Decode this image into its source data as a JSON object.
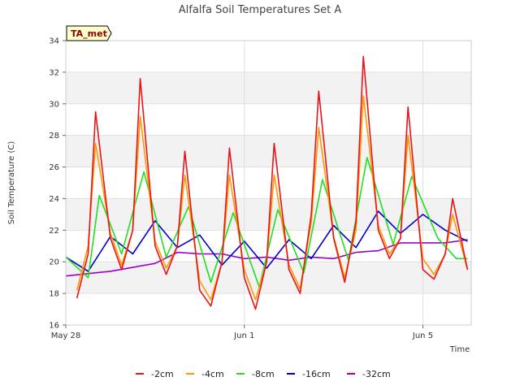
{
  "chart_data": {
    "type": "line",
    "title": "Alfalfa Soil Temperatures Set A",
    "xlabel": "Time",
    "ylabel": "Soil Temperature (C)",
    "badge": "TA_met",
    "ylim": [
      16,
      34
    ],
    "yticks": [
      "16",
      "18",
      "20",
      "22",
      "24",
      "26",
      "28",
      "30",
      "32",
      "34"
    ],
    "xlim": [
      "2024-05-28",
      "2024-06-06T02:00"
    ],
    "xticks": [
      {
        "date": "2024-05-28",
        "label": "May 28"
      },
      {
        "date": "2024-06-01",
        "label": "Jun 1"
      },
      {
        "date": "2024-06-05",
        "label": "Jun 5"
      }
    ],
    "grid": true,
    "legend_position": "bottom",
    "series": [
      {
        "name": "-2cm",
        "color": "#e8141a",
        "x": [
          "2024-05-28T06:00",
          "2024-05-28T12:00",
          "2024-05-28T16:00",
          "2024-05-29T00:00",
          "2024-05-29T06:00",
          "2024-05-29T12:00",
          "2024-05-29T16:00",
          "2024-05-30T00:00",
          "2024-05-30T06:00",
          "2024-05-30T12:00",
          "2024-05-30T16:00",
          "2024-05-31T00:00",
          "2024-05-31T06:00",
          "2024-05-31T12:00",
          "2024-05-31T16:00",
          "2024-06-01T00:00",
          "2024-06-01T06:00",
          "2024-06-01T12:00",
          "2024-06-01T16:00",
          "2024-06-02T00:00",
          "2024-06-02T06:00",
          "2024-06-02T12:00",
          "2024-06-02T16:00",
          "2024-06-03T00:00",
          "2024-06-03T06:00",
          "2024-06-03T12:00",
          "2024-06-03T16:00",
          "2024-06-04T00:00",
          "2024-06-04T06:00",
          "2024-06-04T12:00",
          "2024-06-04T16:00",
          "2024-06-05T00:00",
          "2024-06-05T06:00",
          "2024-06-05T12:00",
          "2024-06-05T16:00",
          "2024-06-06T00:00"
        ],
        "y": [
          17.7,
          20.5,
          29.5,
          21.5,
          19.5,
          22.0,
          31.6,
          21.0,
          19.2,
          21.0,
          27.0,
          18.2,
          17.2,
          20.0,
          27.2,
          19.0,
          17.0,
          20.0,
          27.5,
          19.5,
          18.0,
          23.0,
          30.8,
          21.5,
          18.7,
          22.5,
          33.0,
          22.0,
          20.2,
          21.5,
          29.8,
          19.5,
          18.9,
          20.5,
          24.0,
          19.5
        ]
      },
      {
        "name": "-4cm",
        "color": "#ff9900",
        "x": [
          "2024-05-28T06:00",
          "2024-05-28T12:00",
          "2024-05-28T16:00",
          "2024-05-29T00:00",
          "2024-05-29T06:00",
          "2024-05-29T12:00",
          "2024-05-29T16:00",
          "2024-05-30T00:00",
          "2024-05-30T06:00",
          "2024-05-30T12:00",
          "2024-05-30T16:00",
          "2024-05-31T00:00",
          "2024-05-31T06:00",
          "2024-05-31T12:00",
          "2024-05-31T16:00",
          "2024-06-01T00:00",
          "2024-06-01T06:00",
          "2024-06-01T12:00",
          "2024-06-01T16:00",
          "2024-06-02T00:00",
          "2024-06-02T06:00",
          "2024-06-02T12:00",
          "2024-06-02T16:00",
          "2024-06-03T00:00",
          "2024-06-03T06:00",
          "2024-06-03T12:00",
          "2024-06-03T16:00",
          "2024-06-04T00:00",
          "2024-06-04T06:00",
          "2024-06-04T12:00",
          "2024-06-04T16:00",
          "2024-06-05T00:00",
          "2024-06-05T06:00",
          "2024-06-05T12:00",
          "2024-06-05T16:00",
          "2024-06-06T00:00"
        ],
        "y": [
          18.2,
          21.0,
          27.5,
          21.8,
          19.8,
          22.0,
          29.2,
          21.3,
          19.6,
          21.0,
          25.5,
          18.8,
          17.6,
          20.0,
          25.5,
          19.5,
          17.6,
          20.0,
          25.5,
          19.8,
          18.3,
          22.5,
          28.5,
          21.6,
          19.0,
          22.0,
          30.5,
          22.3,
          20.5,
          21.5,
          28.0,
          20.2,
          19.2,
          20.5,
          23.0,
          19.5
        ]
      },
      {
        "name": "-8cm",
        "color": "#22dd22",
        "x": [
          "2024-05-28T00:00",
          "2024-05-28T12:00",
          "2024-05-28T18:00",
          "2024-05-29T06:00",
          "2024-05-29T18:00",
          "2024-05-30T06:00",
          "2024-05-30T18:00",
          "2024-05-31T06:00",
          "2024-05-31T18:00",
          "2024-06-01T08:00",
          "2024-06-01T18:00",
          "2024-06-02T08:00",
          "2024-06-02T18:00",
          "2024-06-03T08:00",
          "2024-06-03T18:00",
          "2024-06-04T08:00",
          "2024-06-04T18:00",
          "2024-06-05T08:00",
          "2024-06-05T18:00",
          "2024-06-06T00:00"
        ],
        "y": [
          20.3,
          19.0,
          24.2,
          20.5,
          25.7,
          20.3,
          23.5,
          18.7,
          23.1,
          18.4,
          23.3,
          19.3,
          25.2,
          20.1,
          26.6,
          21.1,
          25.4,
          21.5,
          20.2,
          20.2
        ]
      },
      {
        "name": "-16cm",
        "color": "#0000cc",
        "x": [
          "2024-05-28T00:00",
          "2024-05-28T12:00",
          "2024-05-29T00:00",
          "2024-05-29T12:00",
          "2024-05-30T00:00",
          "2024-05-30T12:00",
          "2024-05-31T00:00",
          "2024-05-31T12:00",
          "2024-06-01T00:00",
          "2024-06-01T12:00",
          "2024-06-02T00:00",
          "2024-06-02T12:00",
          "2024-06-03T00:00",
          "2024-06-03T12:00",
          "2024-06-04T00:00",
          "2024-06-04T12:00",
          "2024-06-05T00:00",
          "2024-06-05T12:00",
          "2024-06-06T00:00"
        ],
        "y": [
          20.3,
          19.4,
          21.6,
          20.5,
          22.6,
          20.9,
          21.7,
          19.8,
          21.3,
          19.6,
          21.4,
          20.2,
          22.3,
          20.9,
          23.2,
          21.8,
          23.0,
          22.0,
          21.3
        ]
      },
      {
        "name": "-32cm",
        "color": "#9900cc",
        "x": [
          "2024-05-28T00:00",
          "2024-05-29T00:00",
          "2024-05-30T00:00",
          "2024-05-30T12:00",
          "2024-05-31T00:00",
          "2024-05-31T12:00",
          "2024-06-01T00:00",
          "2024-06-01T12:00",
          "2024-06-02T00:00",
          "2024-06-02T12:00",
          "2024-06-03T00:00",
          "2024-06-03T12:00",
          "2024-06-04T00:00",
          "2024-06-04T12:00",
          "2024-06-05T00:00",
          "2024-06-05T12:00",
          "2024-06-06T00:00"
        ],
        "y": [
          19.1,
          19.4,
          19.9,
          20.6,
          20.5,
          20.5,
          20.2,
          20.3,
          20.1,
          20.3,
          20.2,
          20.6,
          20.7,
          21.2,
          21.2,
          21.2,
          21.4
        ]
      }
    ]
  }
}
